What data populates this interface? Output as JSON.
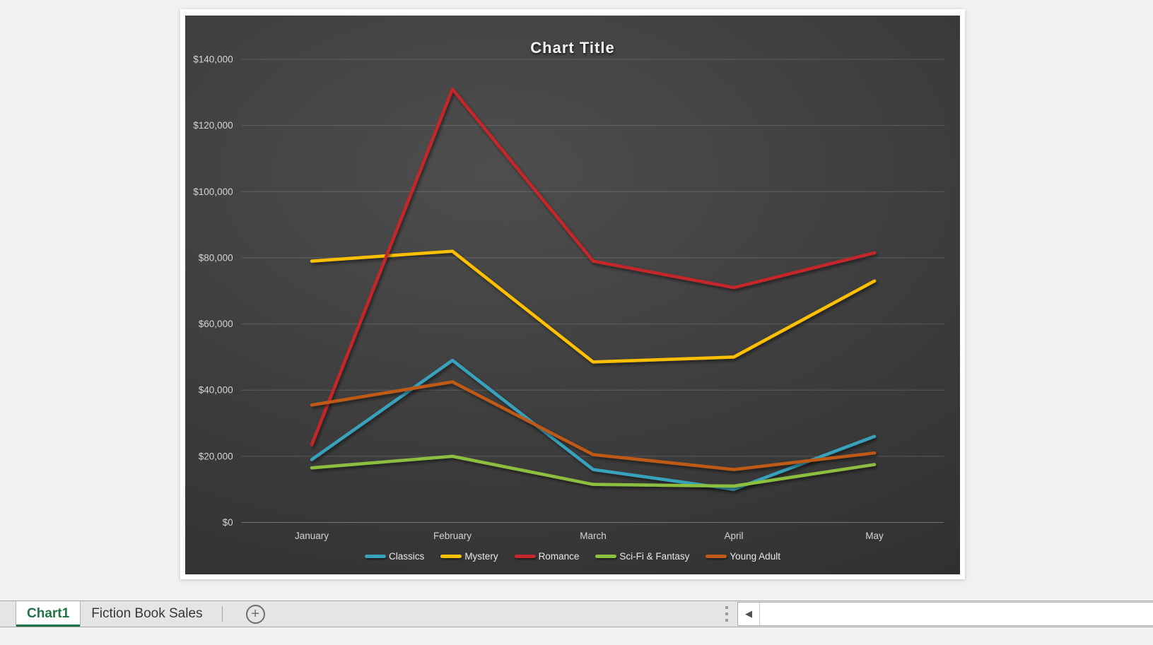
{
  "chart_data": {
    "type": "line",
    "title": "Chart Title",
    "categories": [
      "January",
      "February",
      "March",
      "April",
      "May"
    ],
    "series": [
      {
        "name": "Classics",
        "color": "#38a1bc",
        "values": [
          19000,
          49000,
          16000,
          10000,
          26000
        ]
      },
      {
        "name": "Mystery",
        "color": "#ffc000",
        "values": [
          79000,
          82000,
          48500,
          50000,
          73000
        ]
      },
      {
        "name": "Romance",
        "color": "#c5282c",
        "values": [
          23500,
          131000,
          79000,
          71000,
          81500
        ]
      },
      {
        "name": "Sci-Fi & Fantasy",
        "color": "#8cbe3f",
        "values": [
          16500,
          20000,
          11500,
          11000,
          17500
        ]
      },
      {
        "name": "Young Adult",
        "color": "#be5a15",
        "values": [
          35500,
          42500,
          20500,
          16000,
          21000
        ]
      }
    ],
    "xlabel": "",
    "ylabel": "",
    "ylim": [
      0,
      140000
    ],
    "ytick_step": 20000,
    "ytick_values": [
      0,
      20000,
      40000,
      60000,
      80000,
      100000,
      120000,
      140000
    ],
    "ytick_labels": [
      "$0",
      "$20,000",
      "$40,000",
      "$60,000",
      "$80,000",
      "$100,000",
      "$120,000",
      "$140,000"
    ],
    "grid": true,
    "legend_position": "bottom",
    "axis_text_color": "#d4d4d4",
    "legend_text_color": "#e9e9e9",
    "background": {
      "center": "#4e4e4e",
      "edge": "#2c2c2c"
    }
  },
  "sheet_tabs": {
    "active_color": "#217346",
    "tabs": [
      {
        "label": "Chart1",
        "active": true
      },
      {
        "label": "Fiction Book Sales",
        "active": false
      }
    ]
  },
  "icons": {
    "add_sheet": "+",
    "scroll_left": "◀"
  }
}
